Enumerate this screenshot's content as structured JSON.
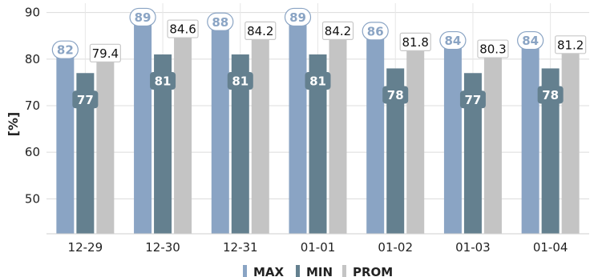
{
  "chart_data": {
    "type": "bar",
    "ylabel": "[%]",
    "categories": [
      "12-29",
      "12-30",
      "12-31",
      "01-01",
      "01-02",
      "01-03",
      "01-04"
    ],
    "series": [
      {
        "name": "MAX",
        "values": [
          82,
          89,
          88,
          89,
          86,
          84,
          84
        ],
        "color": "#8aa4c4"
      },
      {
        "name": "MIN",
        "values": [
          77,
          81,
          81,
          81,
          78,
          77,
          78
        ],
        "color": "#64808f"
      },
      {
        "name": "PROM",
        "values": [
          79.4,
          84.6,
          84.2,
          84.2,
          81.8,
          80.3,
          81.2
        ],
        "color": "#c4c4c4"
      }
    ],
    "ylim": [
      42.5,
      92
    ],
    "yticks": [
      50,
      60,
      70,
      80,
      90
    ],
    "grid": true,
    "legend_position": "bottom"
  }
}
